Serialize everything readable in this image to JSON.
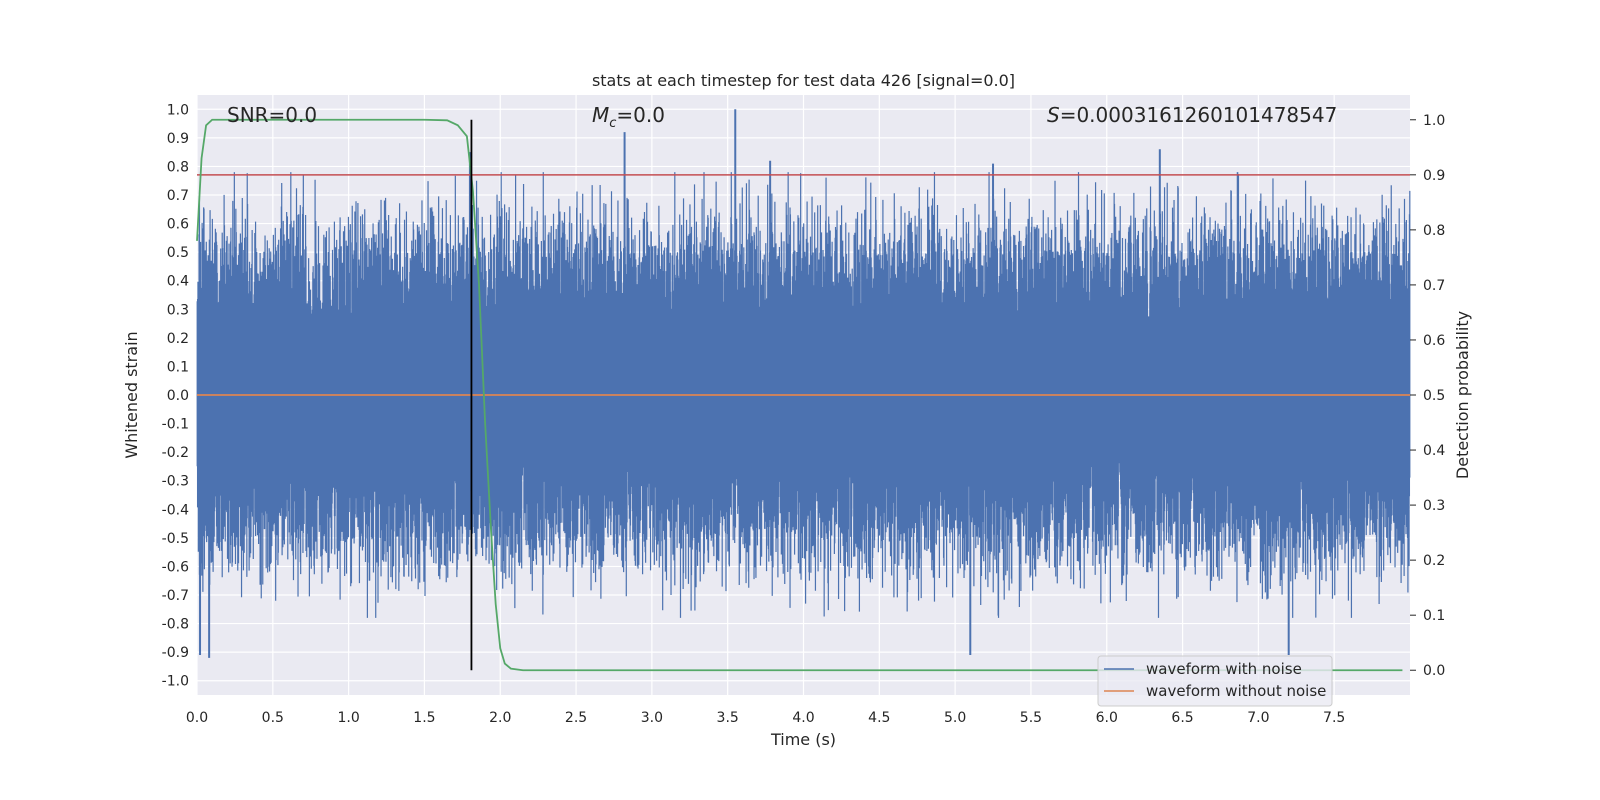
{
  "chart_data": {
    "type": "line",
    "title": "stats at each timestep for test data 426 [signal=0.0]",
    "xlabel": "Time (s)",
    "ylabel": "Whitened strain",
    "y2label": "Detection probability",
    "xlim": [
      0.0,
      8.0
    ],
    "ylim": [
      -1.05,
      1.05
    ],
    "y2lim": [
      -0.045,
      1.045
    ],
    "xticks": [
      "0.0",
      "0.5",
      "1.0",
      "1.5",
      "2.0",
      "2.5",
      "3.0",
      "3.5",
      "4.0",
      "4.5",
      "5.0",
      "5.5",
      "6.0",
      "6.5",
      "7.0",
      "7.5"
    ],
    "yticks": [
      "1.0",
      "0.9",
      "0.8",
      "0.7",
      "0.6",
      "0.5",
      "0.4",
      "0.3",
      "0.2",
      "0.1",
      "0.0",
      "-0.1",
      "-0.2",
      "-0.3",
      "-0.4",
      "-0.5",
      "-0.6",
      "-0.7",
      "-0.8",
      "-0.9",
      "-1.0"
    ],
    "y2ticks": [
      "1.0",
      "0.9",
      "0.8",
      "0.7",
      "0.6",
      "0.5",
      "0.4",
      "0.3",
      "0.2",
      "0.1",
      "0.0"
    ],
    "grid": true,
    "annotations": {
      "snr": "SNR=0.0",
      "mc_symbol": "M",
      "mc_sub": "c",
      "mc_value": "=0.0",
      "s_symbol": "S",
      "s_value": "=0.0003161260101478547"
    },
    "threshold_y2": 0.9,
    "vertical_marker_x": 1.81,
    "waveform_without_noise": {
      "x": [
        0.0,
        8.0
      ],
      "y": [
        0.0,
        0.0
      ]
    },
    "noise": {
      "approx_core_amplitude": 0.35,
      "max_peak": 1.0,
      "min_peak": -0.92,
      "notable_peaks": [
        {
          "x": 1.8,
          "y": 0.85
        },
        {
          "x": 2.82,
          "y": 0.92
        },
        {
          "x": 3.55,
          "y": 1.0
        },
        {
          "x": 3.78,
          "y": 0.82
        },
        {
          "x": 5.25,
          "y": 0.81
        },
        {
          "x": 6.35,
          "y": 0.86
        },
        {
          "x": 0.02,
          "y": -0.91
        },
        {
          "x": 0.08,
          "y": -0.92
        },
        {
          "x": 5.1,
          "y": -0.91
        },
        {
          "x": 7.2,
          "y": -0.91
        }
      ]
    },
    "detection_probability": {
      "x": [
        0.0,
        0.03,
        0.06,
        0.1,
        0.15,
        0.3,
        1.0,
        1.5,
        1.65,
        1.72,
        1.78,
        1.82,
        1.86,
        1.9,
        1.94,
        1.97,
        2.0,
        2.03,
        2.07,
        2.15,
        7.95
      ],
      "y": [
        0.78,
        0.93,
        0.99,
        1.0,
        1.0,
        1.0,
        1.0,
        1.0,
        0.999,
        0.99,
        0.97,
        0.87,
        0.7,
        0.45,
        0.25,
        0.12,
        0.04,
        0.012,
        0.003,
        0.0,
        0.0
      ]
    },
    "series": [
      {
        "name": "waveform with noise",
        "color": "#4c72b0"
      },
      {
        "name": "waveform without noise",
        "color": "#dd8452"
      },
      {
        "name": "detection probability",
        "color": "#55a868"
      },
      {
        "name": "threshold",
        "color": "#c44e52"
      },
      {
        "name": "marker",
        "color": "#000000"
      }
    ],
    "legend": {
      "position": "bottom-right",
      "entries": [
        "waveform with noise",
        "waveform without noise"
      ]
    }
  }
}
